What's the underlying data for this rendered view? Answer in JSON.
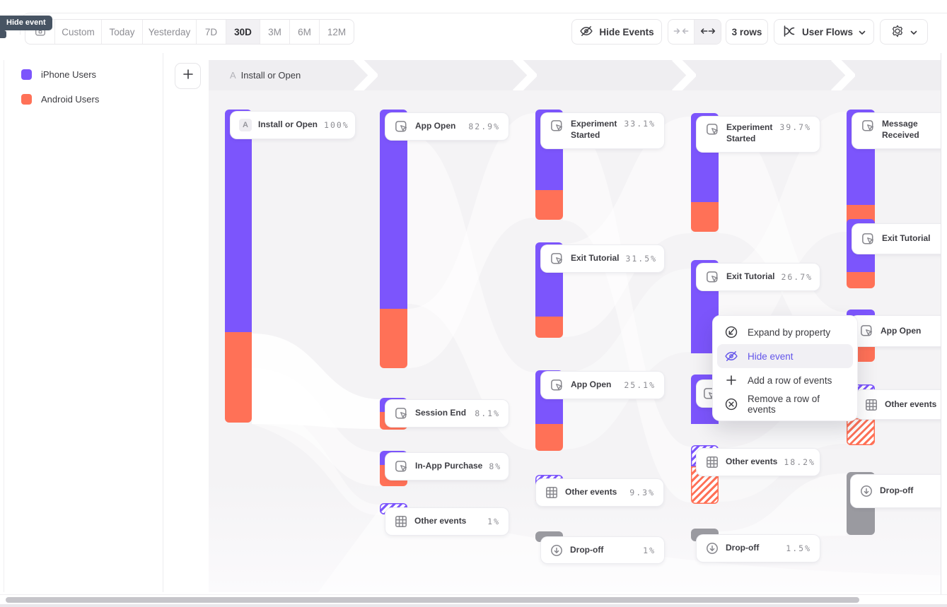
{
  "tooltip": {
    "label": "Hide event"
  },
  "toolbar": {
    "date_ranges": [
      "Custom",
      "Today",
      "Yesterday",
      "7D",
      "30D",
      "3M",
      "6M",
      "12M"
    ],
    "selected_range": "30D",
    "calendar_icon": "calendar-icon",
    "hide_events": "Hide Events",
    "collapse_icon": "arrows-inward-icon",
    "expand_icon": "arrows-outward-icon",
    "rows": "3 rows",
    "view": "User Flows",
    "view_icon": "flows-chart-icon",
    "settings_icon": "gear-icon"
  },
  "legend": {
    "items": [
      {
        "label": "iPhone Users",
        "color": "#7c55fc"
      },
      {
        "label": "Android Users",
        "color": "#ff7157"
      }
    ]
  },
  "flow_header": {
    "badge": "A",
    "label": "Install or Open"
  },
  "context_menu": {
    "items": [
      {
        "label": "Expand by property",
        "icon": "expand-icon",
        "active": false
      },
      {
        "label": "Hide event",
        "icon": "eye-off-icon",
        "active": true
      },
      {
        "label": "Add a row of events",
        "icon": "plus-icon",
        "active": false
      },
      {
        "label": "Remove a row of events",
        "icon": "x-circle-icon",
        "active": false
      }
    ]
  },
  "chart_data": {
    "type": "sankey",
    "legend": [
      "iPhone Users",
      "Android Users"
    ],
    "colors": {
      "iphone": "#7c55fc",
      "android": "#ff7157",
      "dropoff": "#9a9aa0"
    },
    "columns": [
      {
        "step": 1,
        "nodes": [
          {
            "label": "Install or Open",
            "percent": "100%",
            "badge": "A",
            "kind": "event"
          }
        ]
      },
      {
        "step": 2,
        "nodes": [
          {
            "label": "App Open",
            "percent": "82.9%",
            "kind": "event"
          },
          {
            "label": "Session End",
            "percent": "8.1%",
            "kind": "event"
          },
          {
            "label": "In-App Purchase",
            "percent": "8%",
            "kind": "event"
          },
          {
            "label": "Other events",
            "percent": "1%",
            "kind": "other"
          }
        ]
      },
      {
        "step": 3,
        "nodes": [
          {
            "label": "Experiment Started",
            "percent": "33.1%",
            "kind": "event"
          },
          {
            "label": "Exit Tutorial",
            "percent": "31.5%",
            "kind": "event"
          },
          {
            "label": "App Open",
            "percent": "25.1%",
            "kind": "event"
          },
          {
            "label": "Other events",
            "percent": "9.3%",
            "kind": "other"
          },
          {
            "label": "Drop-off",
            "percent": "1%",
            "kind": "dropoff"
          }
        ]
      },
      {
        "step": 4,
        "nodes": [
          {
            "label": "Experiment Started",
            "percent": "39.7%",
            "kind": "event"
          },
          {
            "label": "Exit Tutorial",
            "percent": "26.7%",
            "kind": "event"
          },
          {
            "label": "Other events",
            "percent": "18.2%",
            "kind": "other"
          },
          {
            "label": "Drop-off",
            "percent": "1.5%",
            "kind": "dropoff"
          }
        ]
      },
      {
        "step": 5,
        "nodes": [
          {
            "label": "Message Received",
            "kind": "event"
          },
          {
            "label": "Exit Tutorial",
            "kind": "event"
          },
          {
            "label": "App Open",
            "kind": "event"
          },
          {
            "label": "Other events",
            "kind": "other"
          },
          {
            "label": "Drop-off",
            "kind": "dropoff"
          }
        ]
      }
    ]
  }
}
